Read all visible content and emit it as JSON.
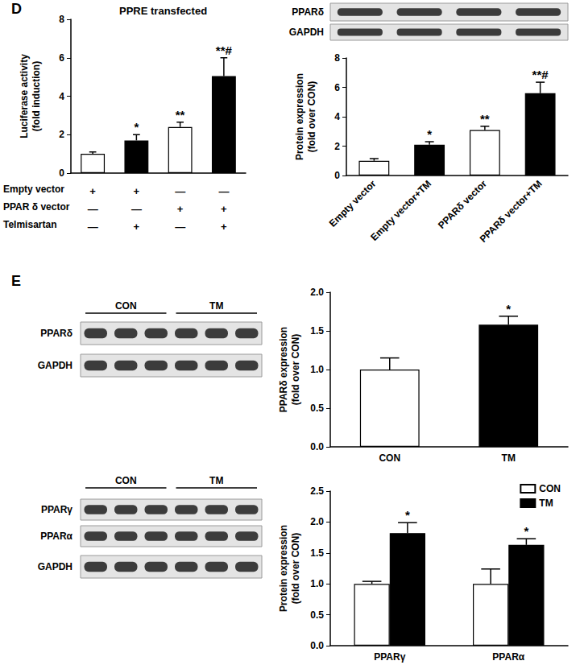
{
  "panel_labels": [
    "D",
    "E"
  ],
  "chart_data": [
    {
      "type": "bar",
      "title": "PPRE transfected",
      "y_label": "Luciferase activity\n(fold induction)",
      "categories": [
        null,
        null,
        null,
        null
      ],
      "values": [
        1.0,
        1.7,
        2.4,
        5.05
      ],
      "errors": [
        0.1,
        0.3,
        0.25,
        0.95
      ],
      "annotations": [
        null,
        "*",
        "**",
        "**#"
      ],
      "colors": [
        "#ffffff",
        "#000000",
        "#ffffff",
        "#000000"
      ],
      "ylim": [
        0,
        8
      ],
      "yticks": [
        0,
        2,
        4,
        6,
        8
      ],
      "conditions": [
        {
          "label": "Empty vector",
          "marks": [
            "+",
            "+",
            "—",
            "—"
          ]
        },
        {
          "label": "PPAR δ vector",
          "marks": [
            "—",
            "—",
            "+",
            "+"
          ]
        },
        {
          "label": "Telmisartan",
          "marks": [
            "—",
            "+",
            "—",
            "+"
          ]
        }
      ]
    },
    {
      "type": "bar",
      "y_label": "Protein expression\n(fold over CON)",
      "categories": [
        "Empty vector",
        "Empty vector+TM",
        "PPARδ vector",
        "PPARδ vector+TM"
      ],
      "values": [
        1.0,
        2.1,
        3.1,
        5.6
      ],
      "errors": [
        0.15,
        0.2,
        0.25,
        0.75
      ],
      "annotations": [
        null,
        "*",
        "**",
        "**#"
      ],
      "colors": [
        "#ffffff",
        "#000000",
        "#ffffff",
        "#000000"
      ],
      "ylim": [
        0,
        8
      ],
      "yticks": [
        0,
        2,
        4,
        6,
        8
      ],
      "blot": {
        "rows": [
          "PPARδ",
          "GAPDH"
        ],
        "lanes": 4
      }
    },
    {
      "type": "bar",
      "y_label": "PPARδ expression\n(fold over CON)",
      "categories": [
        "CON",
        "TM"
      ],
      "values": [
        1.0,
        1.58
      ],
      "errors": [
        0.15,
        0.11
      ],
      "annotations": [
        null,
        "*"
      ],
      "colors": [
        "#ffffff",
        "#000000"
      ],
      "ylim": [
        0,
        2
      ],
      "yticks": [
        {
          "value": 0,
          "label": "0.0"
        },
        {
          "value": 0.5,
          "label": "0.5"
        },
        {
          "value": 1,
          "label": "1.0"
        },
        {
          "value": 1.5,
          "label": "1.5"
        },
        {
          "value": 2,
          "label": "2.0"
        }
      ],
      "blot": {
        "rows": [
          "PPARδ",
          "GAPDH"
        ],
        "groups": [
          {
            "label": "CON",
            "lanes": 3
          },
          {
            "label": "TM",
            "lanes": 3
          }
        ]
      }
    },
    {
      "type": "bar",
      "y_label": "Protein expression\n(fold over CON)",
      "categories": [
        "PPARγ",
        "PPARα"
      ],
      "series": [
        {
          "name": "CON",
          "color": "#ffffff",
          "values": [
            1.0,
            1.0
          ],
          "errors": [
            0.04,
            0.24
          ],
          "annotations": [
            null,
            null
          ]
        },
        {
          "name": "TM",
          "color": "#000000",
          "values": [
            1.82,
            1.63
          ],
          "errors": [
            0.17,
            0.1
          ],
          "annotations": [
            "*",
            "*"
          ]
        }
      ],
      "legend": "upper right",
      "ylim": [
        0,
        2.5
      ],
      "yticks": [
        {
          "value": 0,
          "label": "0.0"
        },
        {
          "value": 0.5,
          "label": "0.5"
        },
        {
          "value": 1,
          "label": "1.0"
        },
        {
          "value": 1.5,
          "label": "1.5"
        },
        {
          "value": 2,
          "label": "2.0"
        },
        {
          "value": 2.5,
          "label": "2.5"
        }
      ],
      "blot": {
        "rows": [
          "PPARγ",
          "PPARα",
          "GAPDH"
        ],
        "groups": [
          {
            "label": "CON",
            "lanes": 3
          },
          {
            "label": "TM",
            "lanes": 3
          }
        ]
      }
    }
  ]
}
